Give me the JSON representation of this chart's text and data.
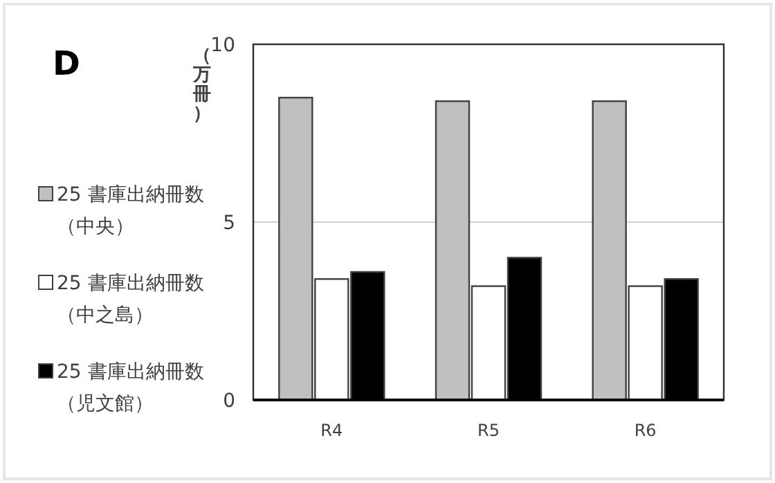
{
  "chart_data": {
    "type": "bar",
    "title": "D",
    "ylabel": "（万冊）",
    "categories": [
      "R4",
      "R5",
      "R6"
    ],
    "series": [
      {
        "name": "25 書庫出納冊数（中央）",
        "color": "#c0c0c0",
        "values": [
          8.5,
          8.4,
          8.4
        ]
      },
      {
        "name": "25 書庫出納冊数（中之島）",
        "color": "#ffffff",
        "values": [
          3.4,
          3.2,
          3.2
        ]
      },
      {
        "name": "25 書庫出納冊数（児文館）",
        "color": "#000000",
        "values": [
          3.6,
          4.0,
          3.4
        ]
      }
    ],
    "ylim": [
      0,
      10
    ],
    "yticks": [
      0,
      5,
      10
    ],
    "grid": "y",
    "legend": "left"
  }
}
